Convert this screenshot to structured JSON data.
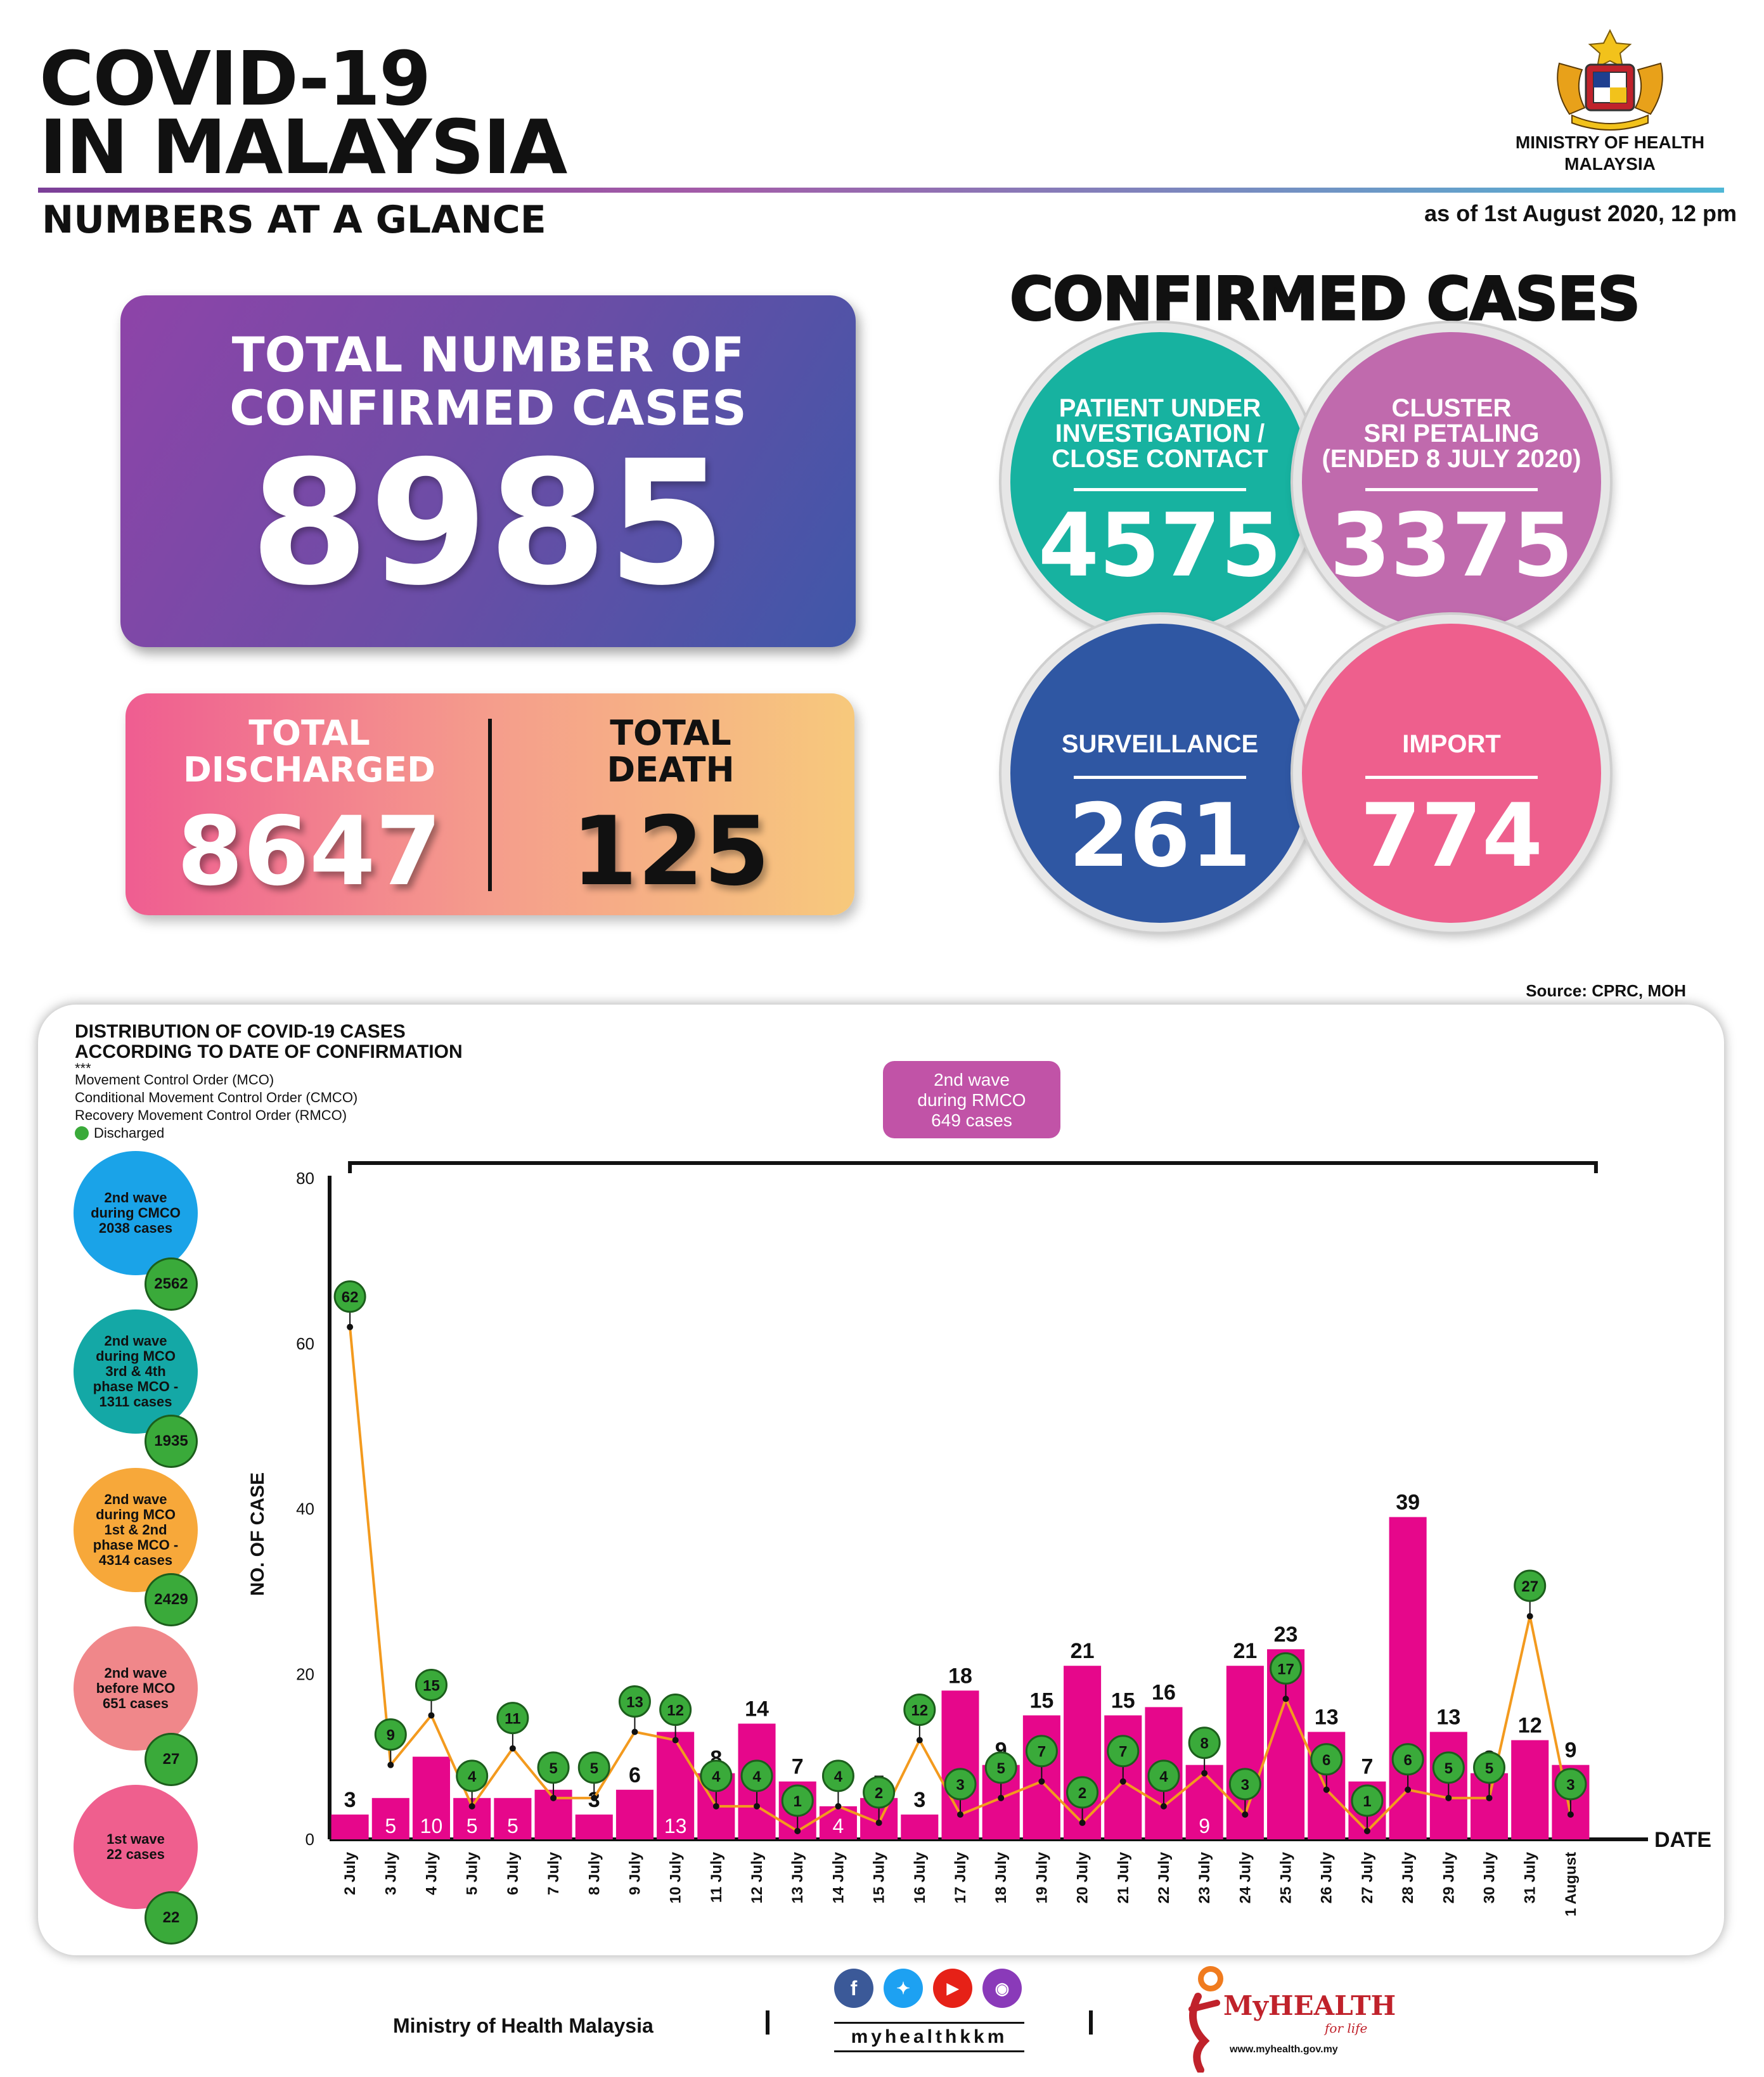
{
  "header": {
    "title_line1": "COVID-19",
    "title_line2": "IN MALAYSIA",
    "subtitle": "NUMBERS AT A GLANCE",
    "ministry_line1": "MINISTRY OF HEALTH",
    "ministry_line2": "MALAYSIA",
    "as_of": "as of 1st August 2020, 12 pm"
  },
  "totals": {
    "confirmed_label_line1": "TOTAL NUMBER OF",
    "confirmed_label_line2": "CONFIRMED CASES",
    "confirmed_value": "8985",
    "discharged_label_line1": "TOTAL",
    "discharged_label_line2": "DISCHARGED",
    "discharged_value": "8647",
    "death_label_line1": "TOTAL",
    "death_label_line2": "DEATH",
    "death_value": "125"
  },
  "confirmed_breakdown": {
    "heading": "CONFIRMED CASES",
    "items": [
      {
        "label_line1": "PATIENT UNDER",
        "label_line2": "INVESTIGATION /",
        "label_line3": "CLOSE CONTACT",
        "value": "4575",
        "color": "#17b2a0"
      },
      {
        "label_line1": "CLUSTER",
        "label_line2": "SRI PETALING",
        "label_line3": "(ENDED 8 JULY 2020)",
        "value": "3375",
        "color": "#c06aad"
      },
      {
        "label_line1": "SURVEILLANCE",
        "label_line2": "",
        "label_line3": "",
        "value": "261",
        "color": "#2f57a3"
      },
      {
        "label_line1": "IMPORT",
        "label_line2": "",
        "label_line3": "",
        "value": "774",
        "color": "#ee5f8d"
      }
    ]
  },
  "source": "Source: CPRC, MOH",
  "distribution": {
    "title_line1": "DISTRIBUTION OF COVID-19 CASES",
    "title_line2": "ACCORDING TO DATE OF CONFIRMATION",
    "stars": "***",
    "legend_mco": "Movement Control Order (MCO)",
    "legend_cmco": "Conditional Movement Control Order (CMCO)",
    "legend_rmco": "Recovery Movement Control Order (RMCO)",
    "legend_discharged": "Discharged",
    "rmco_box_line1": "2nd wave",
    "rmco_box_line2": "during RMCO",
    "rmco_box_line3": "649 cases",
    "waves": [
      {
        "text_line1": "2nd wave",
        "text_line2": "during CMCO",
        "text_line3": "2038 cases",
        "text_line4": "",
        "text_line5": "",
        "discharged": "2562",
        "color": "#1aa3e8"
      },
      {
        "text_line1": "2nd wave",
        "text_line2": "during MCO",
        "text_line3": "3rd & 4th",
        "text_line4": "phase MCO -",
        "text_line5": "1311 cases",
        "discharged": "1935",
        "color": "#14a8a6"
      },
      {
        "text_line1": "2nd wave",
        "text_line2": "during MCO",
        "text_line3": "1st & 2nd",
        "text_line4": "phase MCO -",
        "text_line5": "4314 cases",
        "discharged": "2429",
        "color": "#f7a83a"
      },
      {
        "text_line1": "2nd wave",
        "text_line2": "before MCO",
        "text_line3": "651 cases",
        "text_line4": "",
        "text_line5": "",
        "discharged": "27",
        "color": "#f0878a"
      },
      {
        "text_line1": "1st wave",
        "text_line2": "22 cases",
        "text_line3": "",
        "text_line4": "",
        "text_line5": "",
        "discharged": "22",
        "color": "#ef5f8e"
      }
    ]
  },
  "chart_data": {
    "type": "bar",
    "title": "DISTRIBUTION OF COVID-19 CASES ACCORDING TO DATE OF CONFIRMATION",
    "xlabel": "DATE",
    "ylabel": "NO. OF CASE",
    "ylim": [
      0,
      80
    ],
    "yticks": [
      0,
      20,
      40,
      60,
      80
    ],
    "categories": [
      "2 July",
      "3 July",
      "4 July",
      "5 July",
      "6 July",
      "7 July",
      "8 July",
      "9 July",
      "10 July",
      "11 July",
      "12 July",
      "13 July",
      "14 July",
      "15 July",
      "16 July",
      "17 July",
      "18 July",
      "19 July",
      "20 July",
      "21 July",
      "22 July",
      "23 July",
      "24 July",
      "25 July",
      "26 July",
      "27 July",
      "28 July",
      "29 July",
      "30 July",
      "31 July",
      "1 August"
    ],
    "series": [
      {
        "values": [
          3,
          5,
          10,
          5,
          5,
          6,
          3,
          6,
          13,
          8,
          14,
          7,
          4,
          5,
          3,
          18,
          9,
          15,
          21,
          15,
          16,
          9,
          21,
          23,
          13,
          7,
          39,
          13,
          8,
          12,
          9
        ],
        "color": "#e6078b"
      },
      {
        "name": "Discharged",
        "type": "line",
        "values": [
          62,
          9,
          15,
          4,
          11,
          5,
          5,
          13,
          12,
          4,
          4,
          1,
          4,
          2,
          12,
          3,
          5,
          7,
          2,
          7,
          4,
          8,
          3,
          17,
          6,
          1,
          6,
          5,
          5,
          27,
          3
        ],
        "color": "#f39a1e",
        "marker_color": "#3aaa3a"
      }
    ],
    "annotation": "2nd wave during RMCO 649 cases",
    "grid": false
  },
  "footer": {
    "ministry": "Ministry of Health Malaysia",
    "handle": "myhealthkkm",
    "myhealth": "MyHEALTH",
    "myhealth_sub": "for life",
    "myhealth_url": "www.myhealth.gov.my",
    "social_icons": [
      "facebook-icon",
      "twitter-icon",
      "youtube-icon",
      "instagram-icon"
    ],
    "social_colors": [
      "#3b5998",
      "#1da1f2",
      "#e62117",
      "#8a3ab9"
    ]
  }
}
